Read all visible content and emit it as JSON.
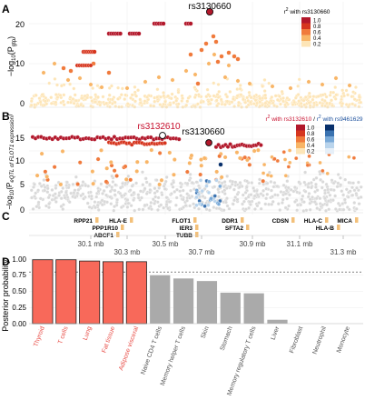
{
  "panels": {
    "A": {
      "label": "A",
      "ylabel_parts": [
        "−log",
        "10",
        "(P",
        "gtp",
        ")"
      ],
      "yticks": [
        "0",
        "10",
        "20"
      ],
      "ylim": [
        0,
        25
      ],
      "lead_snp": "rs3130660",
      "legend": {
        "title": "r² with rs3130660",
        "levels": [
          "1.0",
          "0.8",
          "0.6",
          "0.4",
          "0.2"
        ]
      }
    },
    "B": {
      "label": "B",
      "ylabel_parts": [
        "−log",
        "10",
        "(P",
        "eQTL of FLOT1 expression",
        ")"
      ],
      "yticks": [
        "0",
        "5",
        "10",
        "15"
      ],
      "ylim": [
        0,
        18
      ],
      "lead_snps": [
        "rs3132610",
        "rs3130660"
      ],
      "legend": {
        "title_red": "r² with rs3132610",
        "title_mid": " / r² with ",
        "title_blue": "rs9461629",
        "levels": [
          "1.0",
          "0.8",
          "0.6",
          "0.4",
          "0.2"
        ]
      }
    },
    "C": {
      "label": "C",
      "genes_row1": [
        "RPP21",
        "HLA-E",
        "FLOT1",
        "DDR1",
        "CDSN",
        "HLA-C",
        "MICA"
      ],
      "genes_row2": [
        "PPP1R10",
        "IER3",
        "SFTA2",
        "HLA-B"
      ],
      "genes_row3": [
        "ABCF1",
        "TUBB"
      ],
      "axis_top": [
        "30.1 mb",
        "30.5 mb",
        "30.9 mb",
        "31.1 mb"
      ],
      "axis_bottom": [
        "30.3 mb",
        "30.7 mb",
        "31.3 mb"
      ]
    },
    "D": {
      "label": "D",
      "ylabel": "Posterior probability",
      "yticks": [
        "0.00",
        "0.25",
        "0.50",
        "0.75",
        "1.00"
      ]
    }
  },
  "colors": {
    "red_scale": [
      "#b2182b",
      "#d6361f",
      "#f07a3c",
      "#f8b567",
      "#fde5b7"
    ],
    "blue_scale": [
      "#08306b",
      "#3a72b0",
      "#7aaad8",
      "#b9d4ec",
      "#e6eff8"
    ],
    "grey": "#d9d9d9",
    "bar_highlight": "#f8695a",
    "bar_other": "#aaaaaa",
    "title_red": "#c8102e",
    "title_blue": "#1b4f9c"
  },
  "chart_data": {
    "type": "bar",
    "ylabel": "Posterior probability",
    "ylim": [
      0,
      1.0
    ],
    "threshold": 0.8,
    "categories": [
      "Thyroid",
      "T cells",
      "Lung",
      "Fat tissue",
      "Adipose visceral",
      "Naive CD4 T cells",
      "Memory helper T cells",
      "Skin",
      "Stomach",
      "Memory regulatory T cells",
      "Liver",
      "Fibroblast",
      "Neutrophil",
      "Monocyte"
    ],
    "values": [
      0.99,
      0.99,
      0.97,
      0.96,
      0.96,
      0.75,
      0.7,
      0.66,
      0.48,
      0.47,
      0.06,
      0.0,
      0.0,
      0.0
    ],
    "highlighted": [
      true,
      true,
      true,
      true,
      true,
      false,
      false,
      false,
      false,
      false,
      false,
      false,
      false,
      false
    ]
  }
}
